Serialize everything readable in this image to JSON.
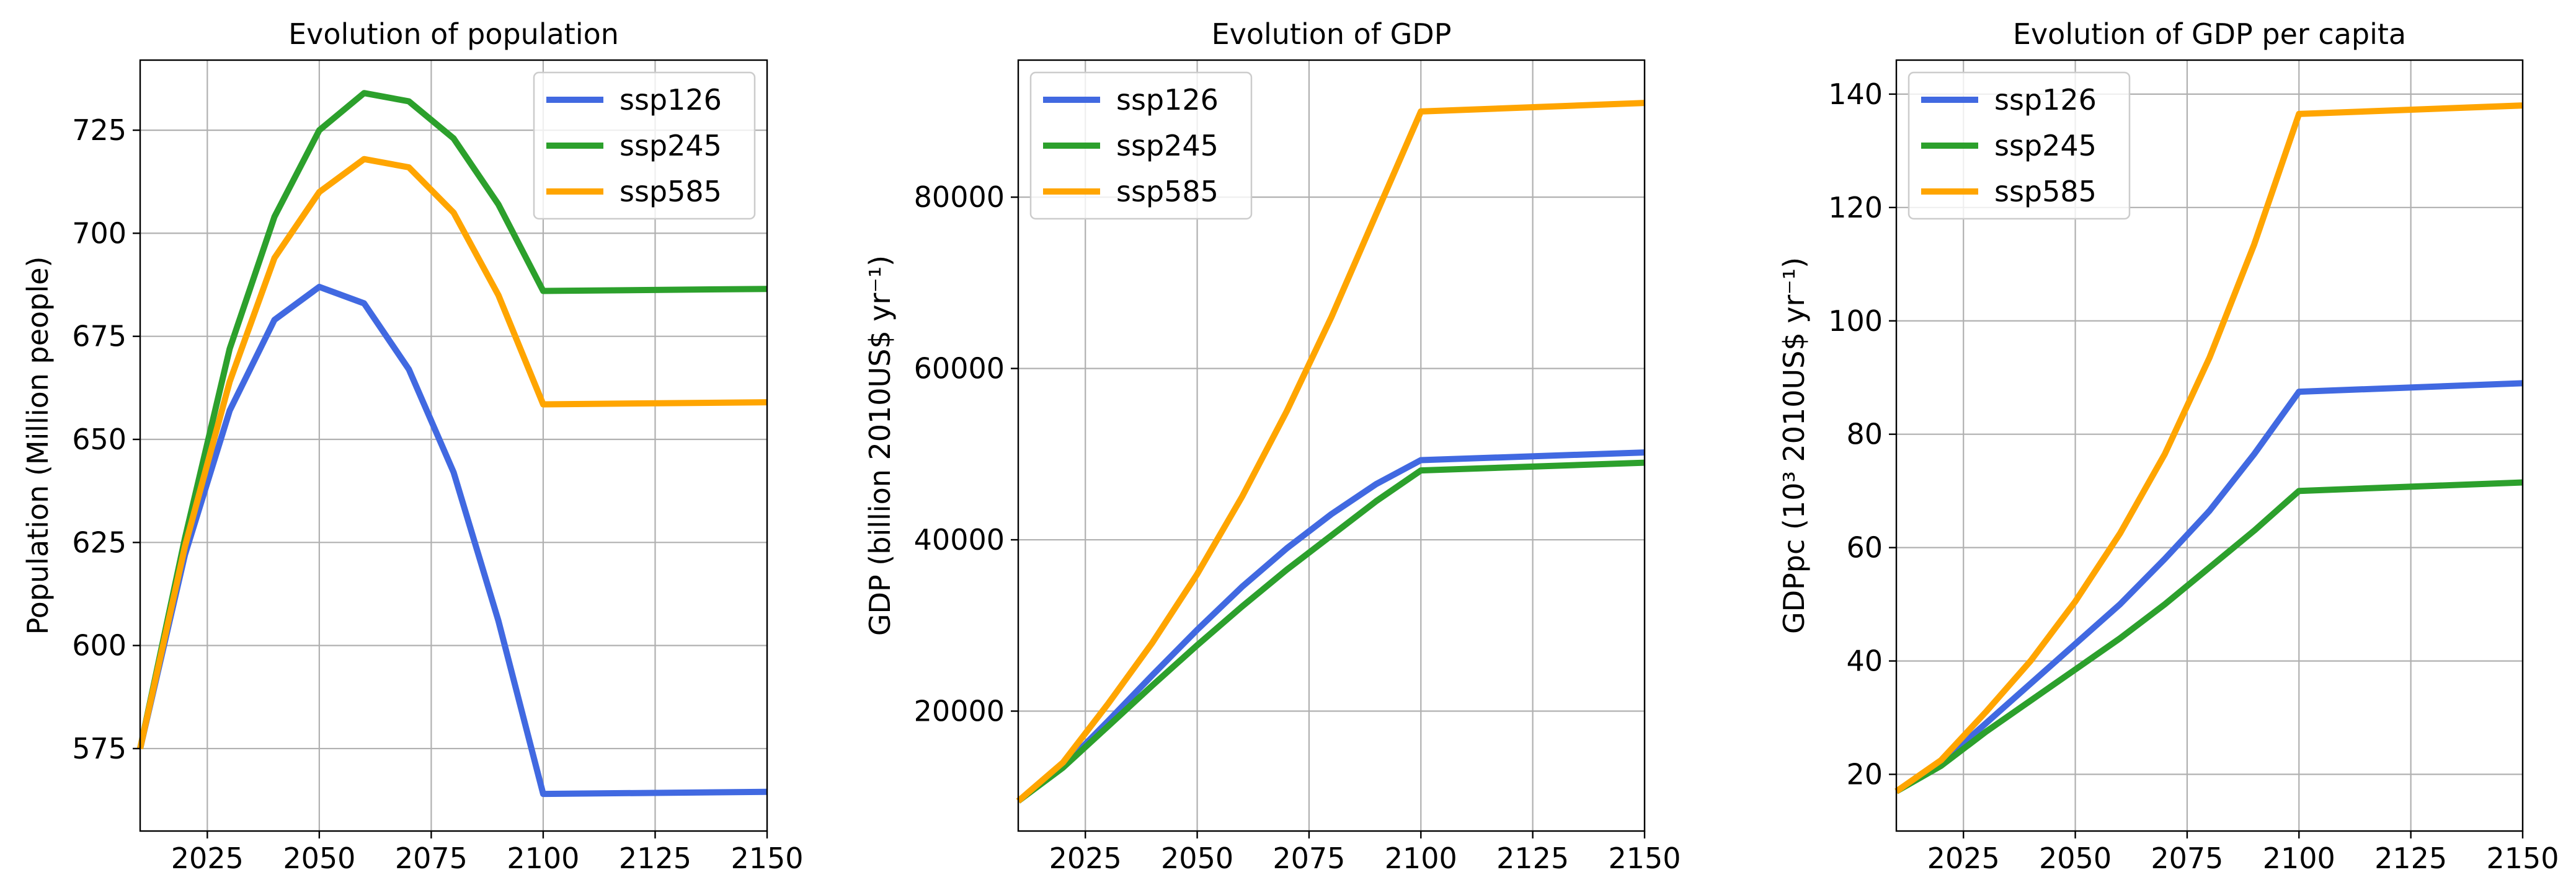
{
  "chart_data": [
    {
      "type": "line",
      "title": "Evolution of population",
      "xlabel": "",
      "ylabel": "Population (Million people)",
      "xlim": [
        2010,
        2150
      ],
      "ylim": [
        555,
        742
      ],
      "xticks": [
        2025,
        2050,
        2075,
        2100,
        2125,
        2150
      ],
      "yticks": [
        575,
        600,
        625,
        650,
        675,
        700,
        725
      ],
      "grid": true,
      "legend_position": "top-right",
      "x": [
        2010,
        2020,
        2030,
        2040,
        2050,
        2060,
        2070,
        2080,
        2090,
        2100,
        2150
      ],
      "series": [
        {
          "name": "ssp126",
          "color": "#4169e1",
          "values": [
            575,
            622,
            657,
            679,
            687,
            683,
            667,
            642,
            606,
            564,
            564.5
          ]
        },
        {
          "name": "ssp245",
          "color": "#2ca02c",
          "values": [
            575,
            626,
            672,
            704,
            725,
            734,
            732,
            723,
            707,
            686,
            686.5
          ]
        },
        {
          "name": "ssp585",
          "color": "#ffa500",
          "values": [
            575,
            624,
            664,
            694,
            710,
            718,
            716,
            705,
            685,
            658.5,
            659
          ]
        }
      ]
    },
    {
      "type": "line",
      "title": "Evolution of GDP",
      "xlabel": "",
      "ylabel": "GDP (billion 2010US$ yr⁻¹)",
      "xlim": [
        2010,
        2150
      ],
      "ylim": [
        6000,
        96000
      ],
      "xticks": [
        2025,
        2050,
        2075,
        2100,
        2125,
        2150
      ],
      "yticks": [
        20000,
        40000,
        60000,
        80000
      ],
      "grid": true,
      "legend_position": "top-left",
      "x": [
        2010,
        2020,
        2030,
        2040,
        2050,
        2060,
        2070,
        2080,
        2090,
        2100,
        2150
      ],
      "series": [
        {
          "name": "ssp126",
          "color": "#4169e1",
          "values": [
            9500,
            13500,
            18800,
            24200,
            29500,
            34500,
            39000,
            43000,
            46500,
            49300,
            50200
          ]
        },
        {
          "name": "ssp245",
          "color": "#2ca02c",
          "values": [
            9500,
            13400,
            18200,
            23000,
            27700,
            32200,
            36500,
            40500,
            44500,
            48100,
            49000
          ]
        },
        {
          "name": "ssp585",
          "color": "#ffa500",
          "values": [
            9500,
            14000,
            20800,
            28000,
            36000,
            45000,
            55000,
            66000,
            78000,
            90000,
            91000
          ]
        }
      ]
    },
    {
      "type": "line",
      "title": "Evolution of GDP per capita",
      "xlabel": "",
      "ylabel": "GDPpc (10³ 2010US$ yr⁻¹)",
      "xlim": [
        2010,
        2150
      ],
      "ylim": [
        10,
        146
      ],
      "xticks": [
        2025,
        2050,
        2075,
        2100,
        2125,
        2150
      ],
      "yticks": [
        20,
        40,
        60,
        80,
        100,
        120,
        140
      ],
      "grid": true,
      "legend_position": "top-left",
      "x": [
        2010,
        2020,
        2030,
        2040,
        2050,
        2060,
        2070,
        2080,
        2090,
        2100,
        2150
      ],
      "series": [
        {
          "name": "ssp126",
          "color": "#4169e1",
          "values": [
            17,
            22,
            29,
            36,
            43,
            50,
            58,
            66.5,
            76.5,
            87.5,
            89
          ]
        },
        {
          "name": "ssp245",
          "color": "#2ca02c",
          "values": [
            17,
            21.5,
            27.5,
            33,
            38.5,
            44,
            50,
            56.5,
            63,
            70,
            71.5
          ]
        },
        {
          "name": "ssp585",
          "color": "#ffa500",
          "values": [
            17,
            22.5,
            31,
            40,
            50.5,
            62.5,
            76.5,
            93.5,
            113.5,
            136.5,
            138
          ]
        }
      ]
    }
  ]
}
